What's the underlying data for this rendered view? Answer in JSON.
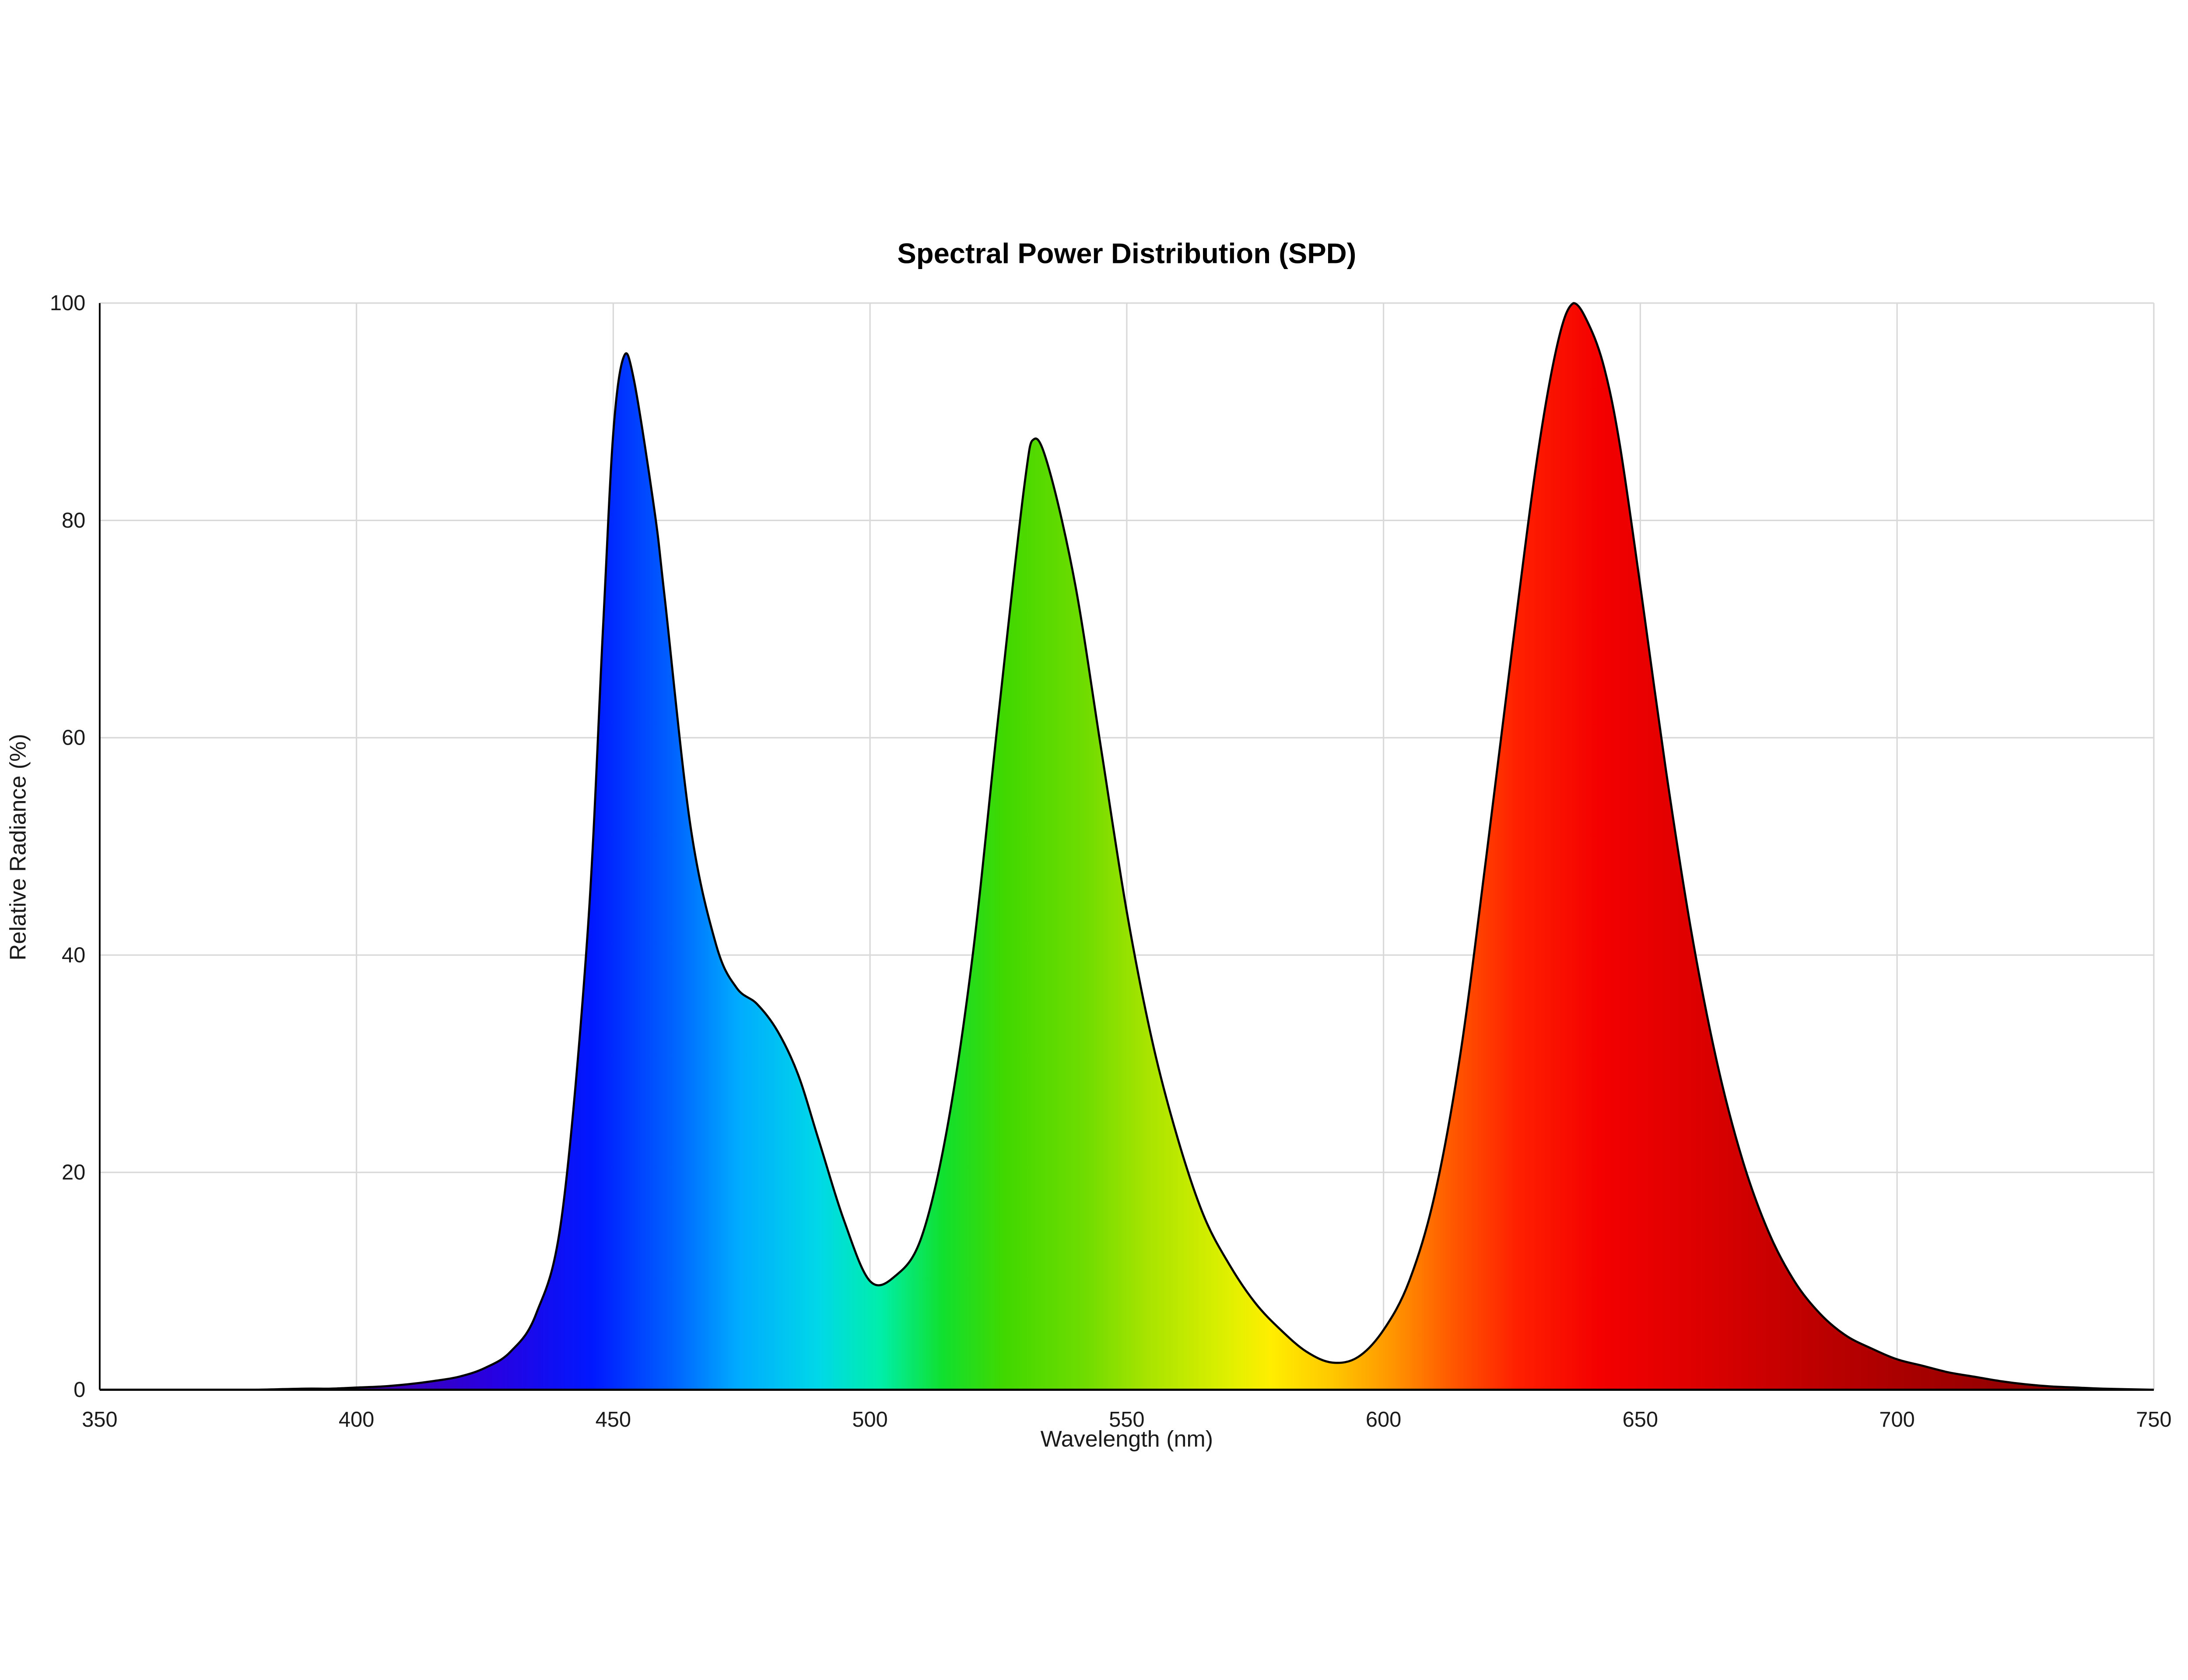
{
  "chart_data": {
    "type": "area",
    "title": "Spectral Power Distribution (SPD)",
    "xlabel": "Wavelength (nm)",
    "ylabel": "Relative Radiance (%)",
    "xlim": [
      350,
      750
    ],
    "ylim": [
      0,
      100
    ],
    "xticks": [
      350,
      400,
      450,
      500,
      550,
      600,
      650,
      700,
      750
    ],
    "yticks": [
      0,
      20,
      40,
      60,
      80,
      100
    ],
    "grid": true,
    "legend": false,
    "peaks": [
      {
        "name": "blue-peak",
        "wavelength_nm": 452,
        "value": 95
      },
      {
        "name": "green-peak",
        "wavelength_nm": 532,
        "value": 87.5
      },
      {
        "name": "red-peak",
        "wavelength_nm": 637,
        "value": 100
      }
    ],
    "series": [
      {
        "name": "SPD",
        "points": [
          [
            350,
            0
          ],
          [
            360,
            0
          ],
          [
            370,
            0
          ],
          [
            380,
            0
          ],
          [
            390,
            0.1
          ],
          [
            395,
            0.1
          ],
          [
            400,
            0.2
          ],
          [
            405,
            0.3
          ],
          [
            410,
            0.5
          ],
          [
            415,
            0.8
          ],
          [
            420,
            1.2
          ],
          [
            425,
            2
          ],
          [
            430,
            3.5
          ],
          [
            435,
            7
          ],
          [
            440,
            16
          ],
          [
            445,
            42
          ],
          [
            448,
            70
          ],
          [
            450,
            88
          ],
          [
            452,
            95
          ],
          [
            454,
            93
          ],
          [
            458,
            81
          ],
          [
            460,
            73
          ],
          [
            465,
            52
          ],
          [
            470,
            41
          ],
          [
            474,
            37
          ],
          [
            478,
            35.5
          ],
          [
            482,
            33
          ],
          [
            486,
            29
          ],
          [
            490,
            23
          ],
          [
            495,
            15.5
          ],
          [
            500,
            10
          ],
          [
            505,
            10.5
          ],
          [
            510,
            14
          ],
          [
            515,
            24
          ],
          [
            520,
            40
          ],
          [
            525,
            62
          ],
          [
            530,
            83
          ],
          [
            532,
            87.5
          ],
          [
            535,
            84.5
          ],
          [
            540,
            74
          ],
          [
            545,
            59
          ],
          [
            550,
            44
          ],
          [
            555,
            32
          ],
          [
            560,
            23
          ],
          [
            565,
            16
          ],
          [
            570,
            11.5
          ],
          [
            575,
            8
          ],
          [
            580,
            5.5
          ],
          [
            585,
            3.5
          ],
          [
            590,
            2.5
          ],
          [
            595,
            3
          ],
          [
            600,
            5.5
          ],
          [
            605,
            10
          ],
          [
            610,
            18
          ],
          [
            615,
            31
          ],
          [
            620,
            49
          ],
          [
            625,
            68
          ],
          [
            630,
            86
          ],
          [
            634,
            96.5
          ],
          [
            637,
            100
          ],
          [
            640,
            98
          ],
          [
            643,
            94
          ],
          [
            646,
            87
          ],
          [
            650,
            74
          ],
          [
            655,
            57
          ],
          [
            660,
            42
          ],
          [
            665,
            30
          ],
          [
            670,
            21
          ],
          [
            675,
            14.5
          ],
          [
            680,
            10
          ],
          [
            685,
            7
          ],
          [
            690,
            5
          ],
          [
            695,
            3.8
          ],
          [
            700,
            2.8
          ],
          [
            705,
            2.2
          ],
          [
            710,
            1.6
          ],
          [
            715,
            1.2
          ],
          [
            720,
            0.8
          ],
          [
            725,
            0.5
          ],
          [
            730,
            0.3
          ],
          [
            735,
            0.2
          ],
          [
            740,
            0.1
          ],
          [
            750,
            0
          ]
        ]
      }
    ],
    "colors": {
      "background": "#ffffff",
      "curve_stroke": "#000000",
      "grid": "#d9d9d9",
      "axis": "#000000",
      "spectrum_gradient": [
        [
          350,
          "#2a0050"
        ],
        [
          400,
          "#4400aa"
        ],
        [
          425,
          "#2800e0"
        ],
        [
          445,
          "#0018ff"
        ],
        [
          460,
          "#0064ff"
        ],
        [
          475,
          "#00aaff"
        ],
        [
          488,
          "#00d8e8"
        ],
        [
          500,
          "#00eeaa"
        ],
        [
          512,
          "#10e030"
        ],
        [
          525,
          "#40d800"
        ],
        [
          540,
          "#70dc00"
        ],
        [
          555,
          "#a8e400"
        ],
        [
          570,
          "#e0f000"
        ],
        [
          580,
          "#ffee00"
        ],
        [
          590,
          "#ffc800"
        ],
        [
          600,
          "#ff9400"
        ],
        [
          612,
          "#ff5500"
        ],
        [
          625,
          "#ff2000"
        ],
        [
          640,
          "#f40000"
        ],
        [
          660,
          "#dc0000"
        ],
        [
          680,
          "#c00000"
        ],
        [
          700,
          "#a80000"
        ],
        [
          725,
          "#900000"
        ],
        [
          750,
          "#800000"
        ]
      ]
    }
  }
}
